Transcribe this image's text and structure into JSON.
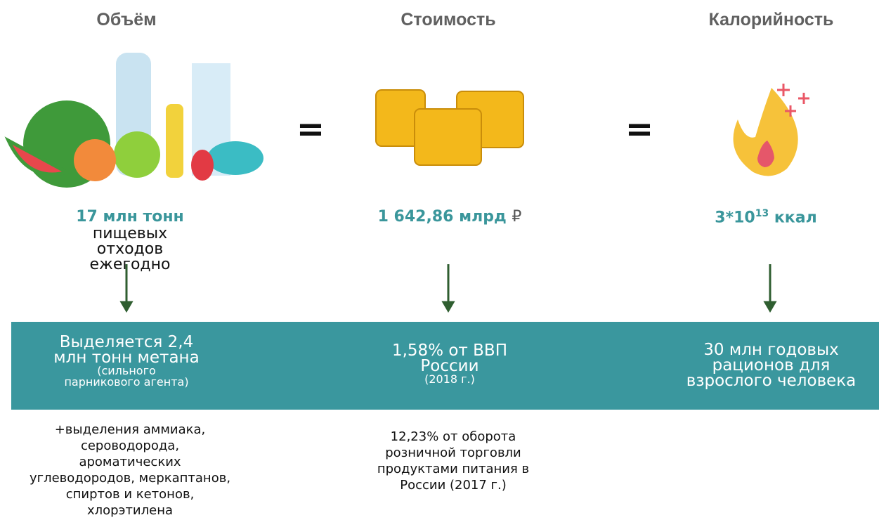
{
  "columns": [
    {
      "header": "Объём",
      "value": "17 млн тонн",
      "value_note": "пищевых отходов ежегодно",
      "band_text": "Выделяется 2,4 млн тонн метана",
      "band_note": "(сильного парникового агента)",
      "footnote": "+выделения аммиака, сероводорода, ароматических углеводородов, меркаптанов, спиртов и кетонов, хлорэтилена"
    },
    {
      "header": "Стоимость",
      "value": "1 642,86 млрд",
      "currency": "₽",
      "band_text": "1,58% от ВВП России",
      "band_note": "(2018 г.)",
      "footnote": "12,23% от оборота розничной торговли продуктами питания в России (2017 г.)"
    },
    {
      "header": "Калорийность",
      "value": "3*10",
      "exponent": "13",
      "unit": "ккал",
      "band_text": "30 млн годовых рационов для взрослого человека"
    }
  ],
  "separators": [
    "=",
    "="
  ]
}
